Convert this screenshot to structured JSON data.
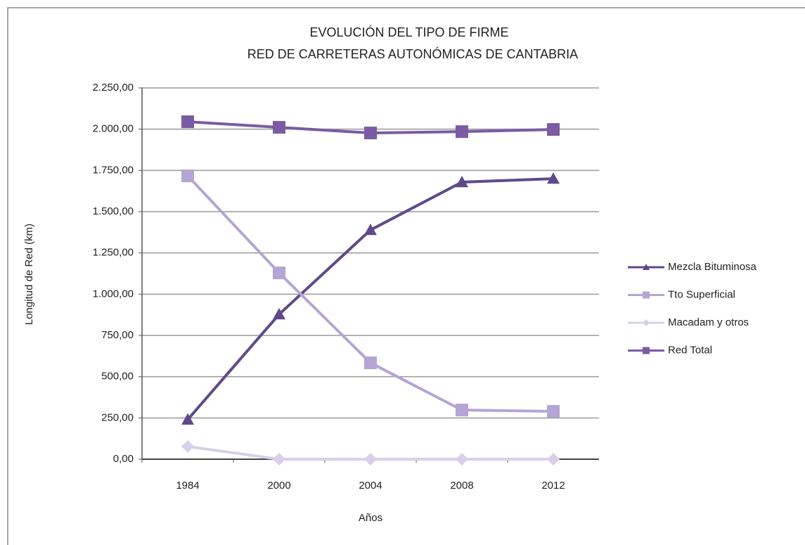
{
  "chart_data": {
    "type": "line",
    "title": [
      "EVOLUCIÓN DEL TIPO DE FIRME",
      "RED DE CARRETERAS AUTONÓMICAS DE CANTABRIA"
    ],
    "y_label": "Longitud de Red  (km)",
    "x_label": "Años",
    "categories": [
      "1984",
      "2000",
      "2004",
      "2008",
      "2012"
    ],
    "series": [
      {
        "name": "Mezcla Bituminosa",
        "color": "#5e4a8a",
        "marker": "triangle",
        "values": [
          240,
          878,
          1389,
          1679,
          1700
        ]
      },
      {
        "name": "Tto Superficial",
        "color": "#b5a5d4",
        "marker": "square",
        "values": [
          1717,
          1129,
          584,
          298,
          290
        ]
      },
      {
        "name": "Macadam y otros",
        "color": "#d8cfe8",
        "marker": "diamond",
        "values": [
          77,
          0,
          0,
          0,
          0
        ]
      },
      {
        "name": "Red Total",
        "color": "#7b5ba3",
        "marker": "square",
        "values": [
          2045,
          2011,
          1977,
          1985,
          1998
        ]
      }
    ],
    "ylim": [
      0,
      2250
    ],
    "yticks": [
      {
        "value": 0,
        "label": "0,00"
      },
      {
        "value": 250,
        "label": "250,00"
      },
      {
        "value": 500,
        "label": "500,00"
      },
      {
        "value": 750,
        "label": "750,00"
      },
      {
        "value": 1000,
        "label": "1.000,00"
      },
      {
        "value": 1250,
        "label": "1.250,00"
      },
      {
        "value": 1500,
        "label": "1.500,00"
      },
      {
        "value": 1750,
        "label": "1.750,00"
      },
      {
        "value": 2000,
        "label": "2.000,00"
      },
      {
        "value": 2250,
        "label": "2.250,00"
      }
    ],
    "grid": true,
    "legend": "right"
  }
}
